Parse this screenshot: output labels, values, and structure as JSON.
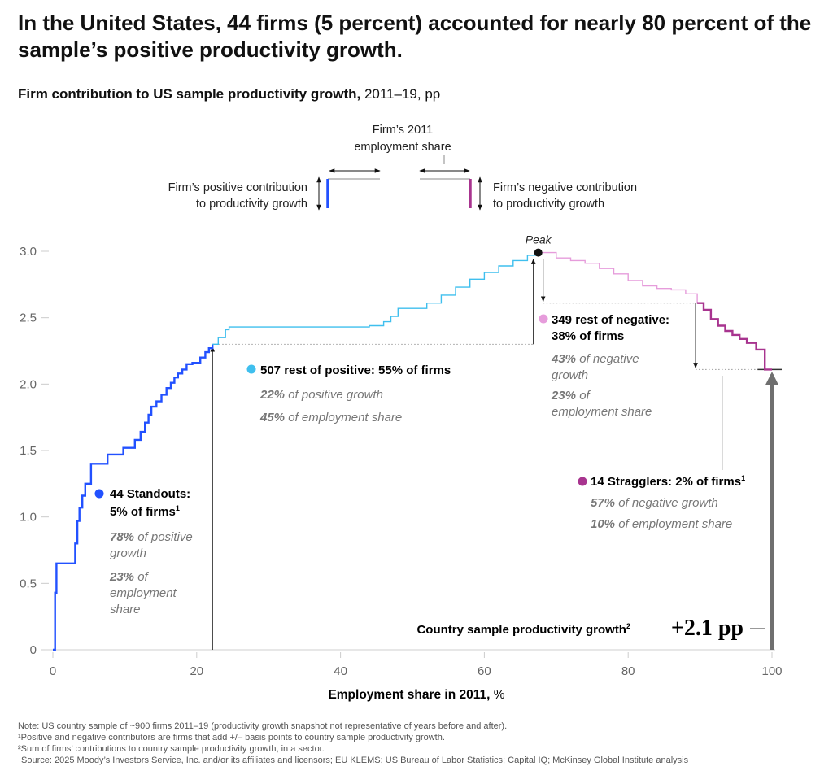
{
  "headline": "In the United States, 44 firms (5 percent) accounted for nearly 80 percent of the sample’s positive productivity growth.",
  "subtitle": {
    "bold": "Firm contribution to US sample productivity growth,",
    "rest": " 2011–19, pp"
  },
  "legend_key": {
    "employment_share": [
      "Firm’s 2011",
      "employment share"
    ],
    "positive": [
      "Firm’s positive contribution",
      "to productivity growth"
    ],
    "negative": [
      "Firm’s negative contribution",
      "to productivity growth"
    ]
  },
  "chart_data": {
    "type": "line",
    "xlabel_bold": "Employment share in 2011,",
    "xlabel_unit": " %",
    "ylabel": "",
    "xlim": [
      0,
      100
    ],
    "ylim": [
      0,
      3.0
    ],
    "x_ticks": [
      "0",
      "20",
      "40",
      "60",
      "80",
      "100"
    ],
    "y_ticks": [
      "0",
      "0.5",
      "1.0",
      "1.5",
      "2.0",
      "2.5",
      "3.0"
    ],
    "colors": {
      "standouts": "#2251ff",
      "rest_positive": "#3fbfee",
      "rest_negative": "#e69cdb",
      "stragglers": "#a8348f"
    },
    "series": [
      {
        "key": "standouts",
        "x": [
          0,
          0.3,
          0.5,
          2.9,
          3.1,
          3.4,
          3.7,
          4.1,
          4.5,
          5.3,
          7.6,
          9.8,
          11.4,
          12.2,
          12.8,
          13.3,
          13.7,
          14.4,
          15.1,
          15.8,
          16.4,
          16.9,
          17.4,
          18.0,
          18.6,
          19.4,
          20.5,
          21.2,
          21.7,
          22.2
        ],
        "y": [
          0,
          0.43,
          0.65,
          0.65,
          0.8,
          0.97,
          1.07,
          1.16,
          1.25,
          1.4,
          1.47,
          1.52,
          1.58,
          1.64,
          1.71,
          1.77,
          1.83,
          1.87,
          1.92,
          1.97,
          2.01,
          2.05,
          2.08,
          2.11,
          2.15,
          2.16,
          2.2,
          2.24,
          2.27,
          2.3
        ]
      },
      {
        "key": "rest_positive",
        "x": [
          22.2,
          23.0,
          24.0,
          24.5,
          30,
          40,
          44,
          46,
          47,
          48,
          52,
          54,
          56,
          58,
          60,
          62,
          64,
          66,
          67.5
        ],
        "y": [
          2.3,
          2.35,
          2.41,
          2.43,
          2.43,
          2.43,
          2.44,
          2.47,
          2.51,
          2.57,
          2.61,
          2.67,
          2.73,
          2.79,
          2.84,
          2.89,
          2.93,
          2.97,
          2.99
        ]
      },
      {
        "key": "rest_negative",
        "x": [
          67.5,
          70,
          72,
          74,
          76,
          78,
          80,
          82,
          84,
          86,
          88,
          89.6
        ],
        "y": [
          2.99,
          2.95,
          2.93,
          2.91,
          2.87,
          2.83,
          2.78,
          2.74,
          2.72,
          2.71,
          2.68,
          2.61
        ]
      },
      {
        "key": "stragglers",
        "x": [
          89.6,
          90.5,
          91.5,
          92.5,
          93.5,
          94.5,
          95.5,
          96.5,
          97.8,
          99,
          100
        ],
        "y": [
          2.61,
          2.56,
          2.49,
          2.44,
          2.4,
          2.37,
          2.34,
          2.31,
          2.26,
          2.11,
          2.11
        ]
      }
    ],
    "peak": {
      "label": "Peak",
      "x": 67.5,
      "y": 2.99
    },
    "end_value": 2.11
  },
  "annotations": {
    "standouts": {
      "title": [
        "44 Standouts:",
        "5% of firms"
      ],
      "superscript": "1",
      "stat1_pct": "78%",
      "stat1_text": [
        " of positive",
        "growth"
      ],
      "stat2_pct": "23%",
      "stat2_text": [
        " of",
        "employment",
        "share"
      ]
    },
    "rest_positive": {
      "title": "507 rest of positive: 55% of firms",
      "stat1_pct": "22%",
      "stat1_text": " of positive growth",
      "stat2_pct": "45%",
      "stat2_text": " of employment share"
    },
    "rest_negative": {
      "title": [
        "349 rest of negative:",
        "38% of firms"
      ],
      "stat1_pct": "43%",
      "stat1_text": [
        " of negative",
        "growth"
      ],
      "stat2_pct": "23%",
      "stat2_text": [
        " of",
        "employment share"
      ]
    },
    "stragglers": {
      "title": "14 Stragglers: 2% of firms",
      "superscript": "1",
      "stat1_pct": "57%",
      "stat1_text": " of negative growth",
      "stat2_pct": "10%",
      "stat2_text": " of employment share"
    },
    "country": {
      "label": "Country sample productivity growth",
      "superscript": "2",
      "value": "+2.1 pp"
    }
  },
  "notes": {
    "note": "Note: US country sample of ~900 firms 2011–19 (productivity growth snapshot not representative of years before and after).",
    "footnote1": "¹Positive and negative contributors are firms that add +/– basis points to country sample productivity growth.",
    "footnote2": "²Sum of firms’ contributions to country sample productivity growth, in a sector.",
    "source": "Source: 2025 Moody’s Investors Service, Inc. and/or its affiliates and licensors; EU KLEMS; US Bureau of Labor Statistics; Capital IQ; McKinsey Global Institute analysis"
  }
}
